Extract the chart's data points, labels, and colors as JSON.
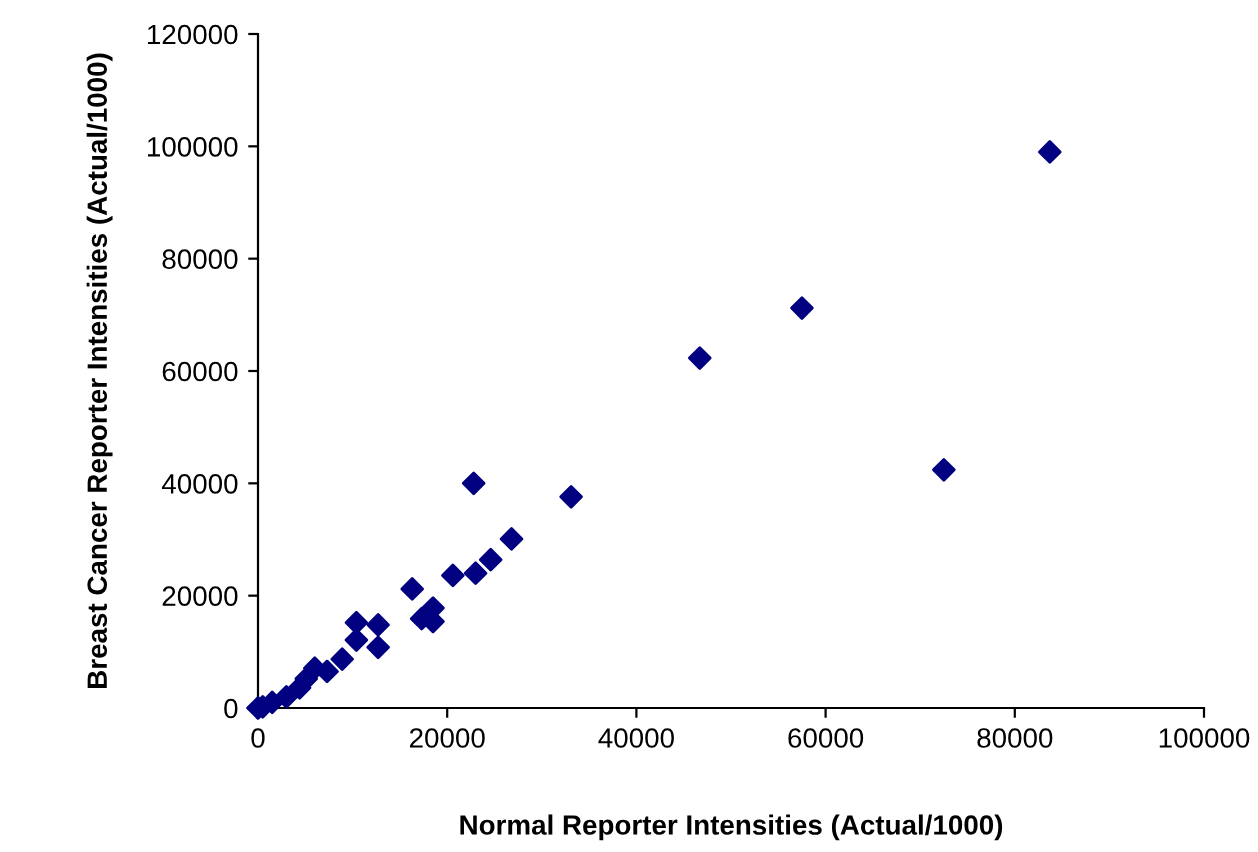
{
  "chart_data": {
    "type": "scatter",
    "xlabel": "Normal Reporter Intensities (Actual/1000)",
    "ylabel": "Breast Cancer Reporter Intensities (Actual/1000)",
    "x": [
      83700,
      72500,
      57500,
      46700,
      22800,
      33100,
      26800,
      24600,
      23000,
      20600,
      16300,
      18500,
      17300,
      18500,
      10400,
      12700,
      10400,
      12700,
      8900,
      7300,
      6000,
      5100,
      4400,
      0,
      1500,
      3000,
      500
    ],
    "series": [
      {
        "color": "#000080",
        "values": [
          99000,
          42400,
          71200,
          62300,
          40000,
          37600,
          30100,
          26400,
          24000,
          23600,
          21200,
          17800,
          15900,
          15400,
          15200,
          14800,
          12100,
          10800,
          8700,
          6500,
          7100,
          5200,
          3600,
          0,
          1000,
          2000,
          200
        ]
      }
    ],
    "xlim": [
      0,
      100000
    ],
    "ylim": [
      0,
      120000
    ],
    "xticks": [
      0,
      20000,
      40000,
      60000,
      80000,
      100000
    ],
    "yticks": [
      0,
      20000,
      40000,
      60000,
      80000,
      100000,
      120000
    ],
    "marker": "diamond",
    "grid": false,
    "legend": false
  }
}
